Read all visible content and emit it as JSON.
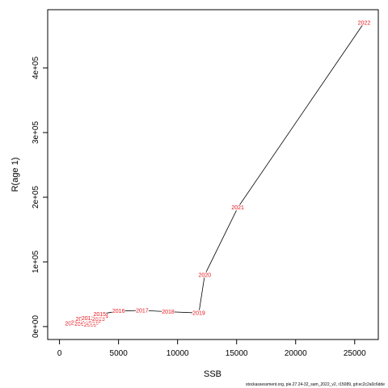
{
  "chart_data": {
    "type": "line",
    "title": "",
    "xlabel": "SSB",
    "ylabel": "R(age 1)",
    "xlim": [
      -1000,
      27000
    ],
    "ylim": [
      -20000,
      490000
    ],
    "x_ticks": [
      0,
      5000,
      10000,
      15000,
      20000,
      25000
    ],
    "x_tick_labels": [
      "0",
      "5000",
      "10000",
      "15000",
      "20000",
      "25000"
    ],
    "y_ticks": [
      0,
      100000,
      200000,
      300000,
      400000
    ],
    "y_tick_labels": [
      "0e+00",
      "1e+05",
      "2e+05",
      "3e+05",
      "4e+05"
    ],
    "grid": false,
    "series": [
      {
        "color": "#e8141c",
        "points": [
          {
            "label": "2002",
            "x": 1000,
            "y": 5000
          },
          {
            "label": "2003",
            "x": 1500,
            "y": 6000
          },
          {
            "label": "2004",
            "x": 1800,
            "y": 4000
          },
          {
            "label": "2005",
            "x": 2100,
            "y": 8000
          },
          {
            "label": "2006",
            "x": 1900,
            "y": 12000
          },
          {
            "label": "2007",
            "x": 2300,
            "y": 7000
          },
          {
            "label": "2008",
            "x": 2500,
            "y": 10000
          },
          {
            "label": "2009",
            "x": 2600,
            "y": 3000
          },
          {
            "label": "2010",
            "x": 2800,
            "y": 6000
          },
          {
            "label": "2011",
            "x": 3000,
            "y": 9000
          },
          {
            "label": "2012",
            "x": 2400,
            "y": 13000
          },
          {
            "label": "2013",
            "x": 3300,
            "y": 12000
          },
          {
            "label": "2014",
            "x": 3600,
            "y": 16000
          },
          {
            "label": "2015",
            "x": 3400,
            "y": 19000
          },
          {
            "label": "2016",
            "x": 5000,
            "y": 24000
          },
          {
            "label": "2017",
            "x": 7000,
            "y": 25000
          },
          {
            "label": "2018",
            "x": 9200,
            "y": 23000
          },
          {
            "label": "2019",
            "x": 11800,
            "y": 21000
          },
          {
            "label": "2020",
            "x": 12300,
            "y": 80000
          },
          {
            "label": "2021",
            "x": 15100,
            "y": 184000
          },
          {
            "label": "2022",
            "x": 25800,
            "y": 470000
          }
        ]
      }
    ]
  },
  "footnote": "stockassessment.org, ple.27.24-32_sam_2022_v2, r15089, git:ec2c2a0c6dde"
}
